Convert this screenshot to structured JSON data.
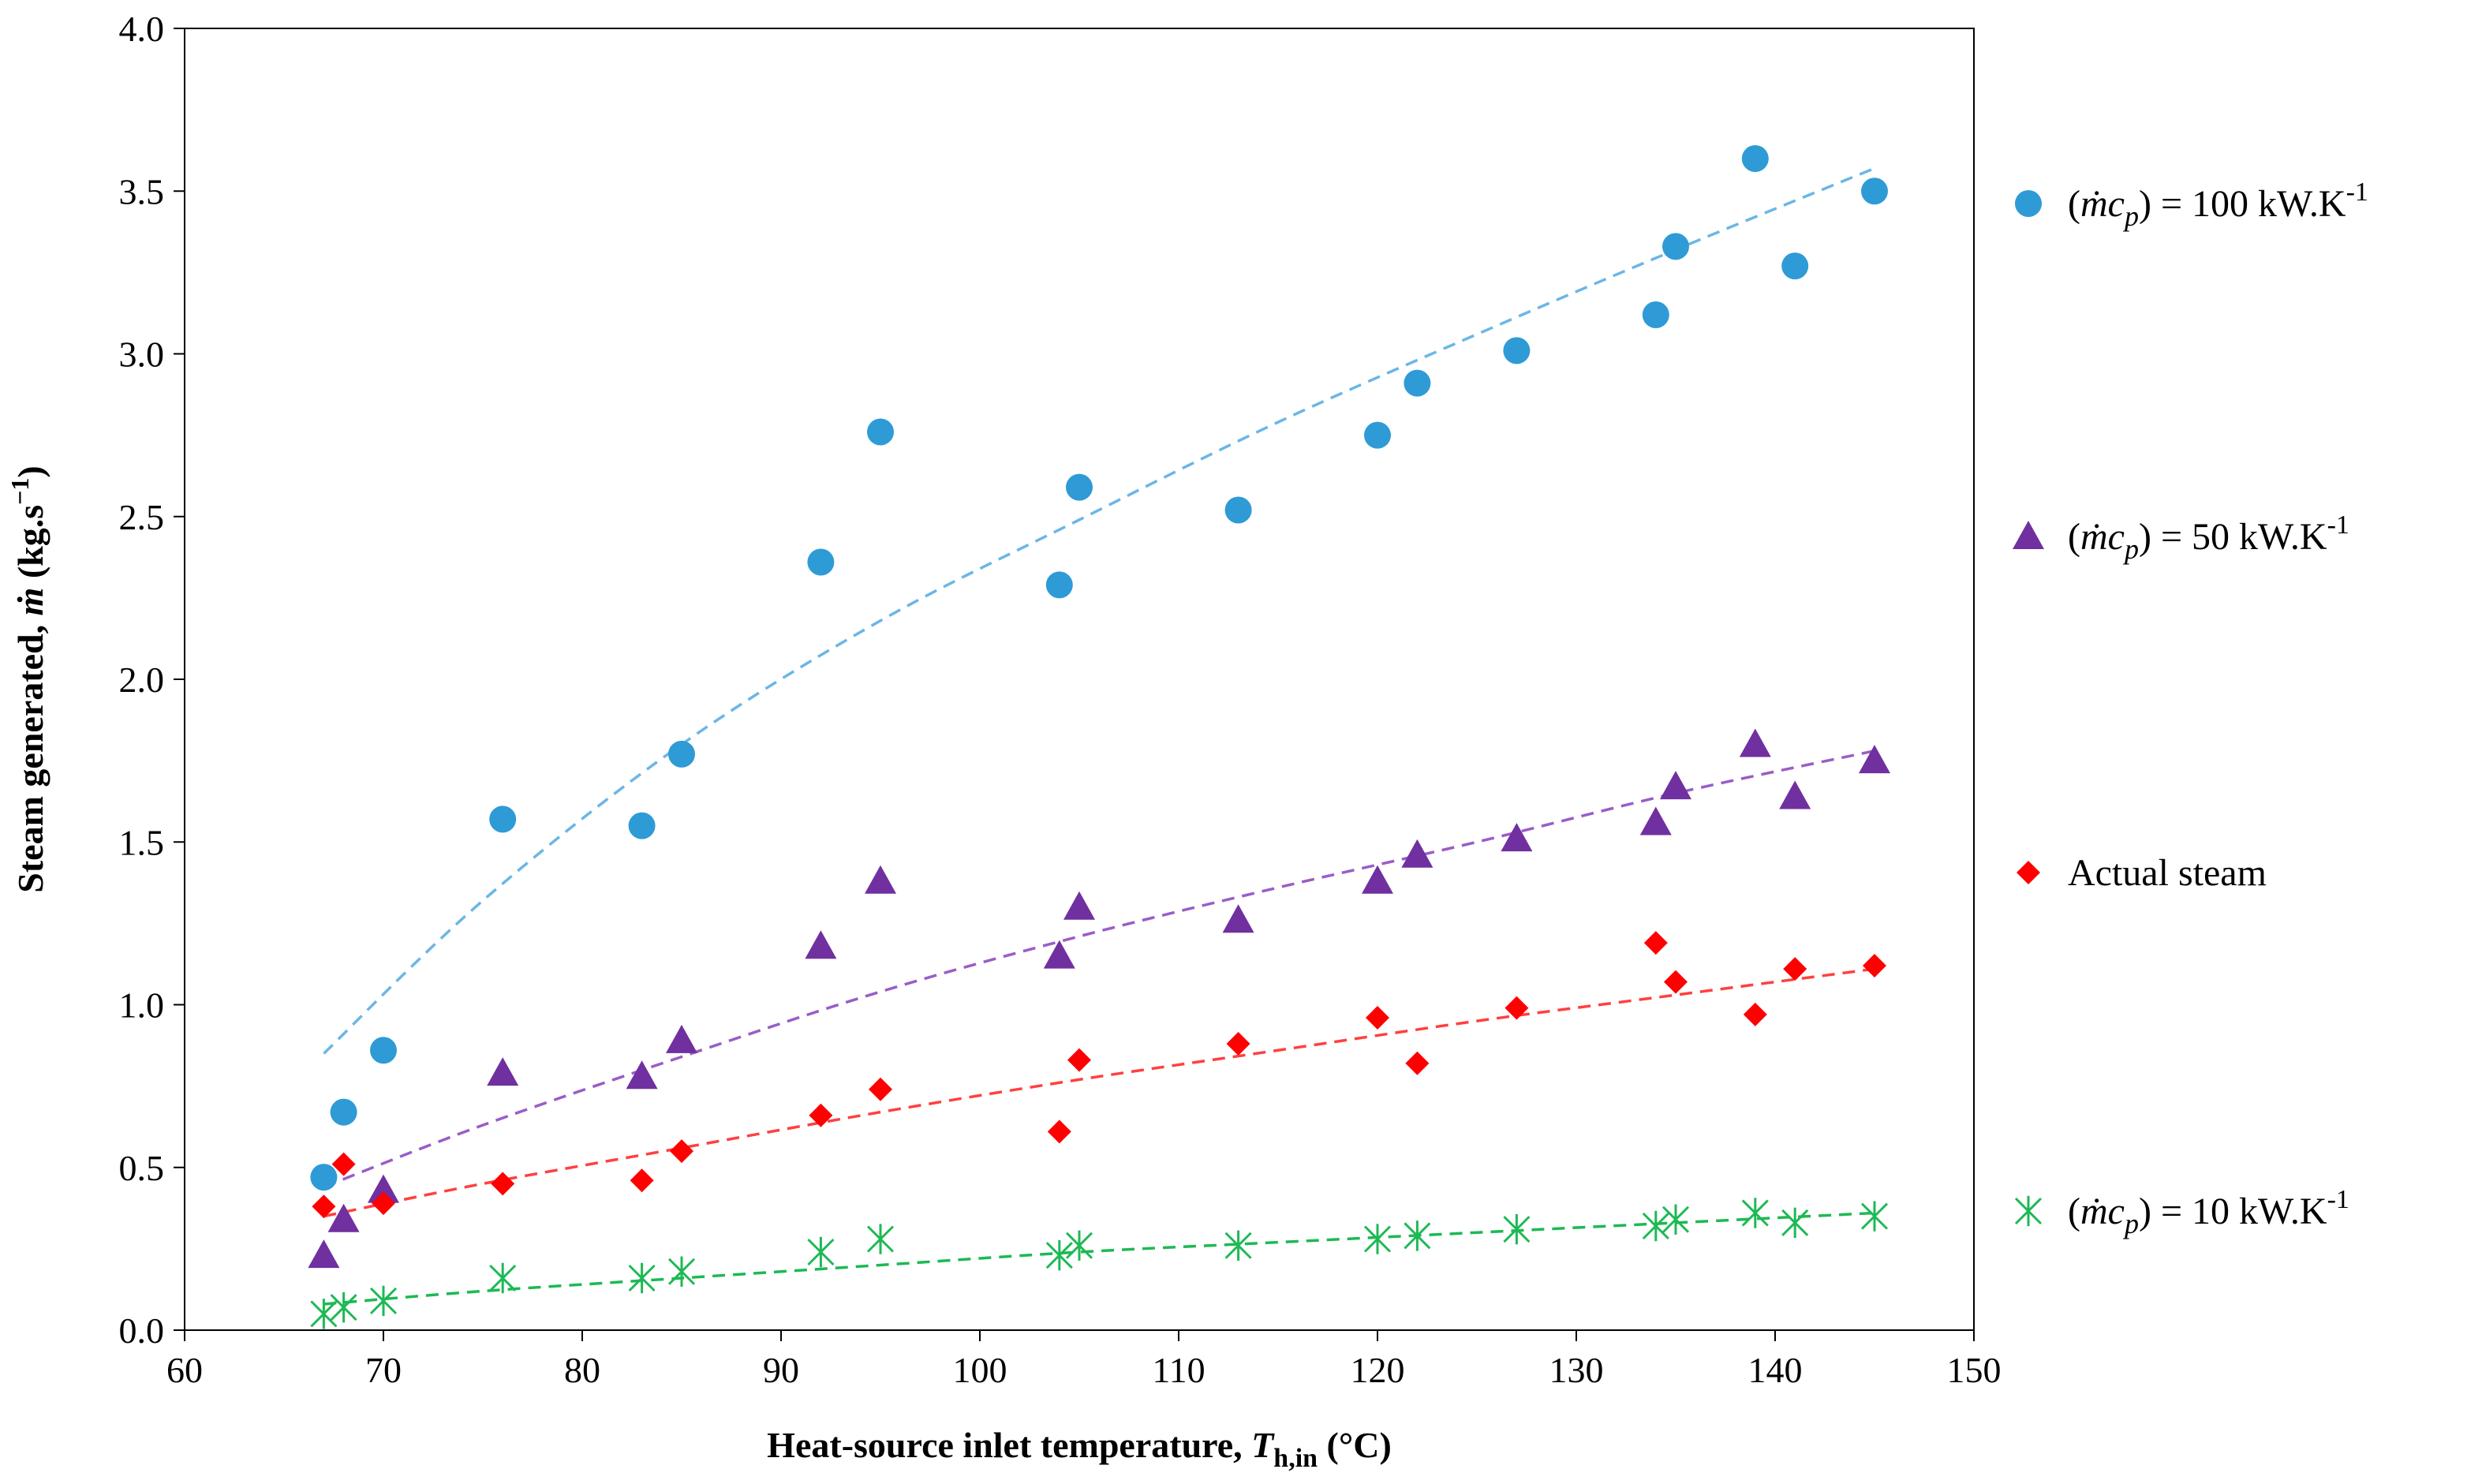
{
  "chart_data": {
    "type": "scatter",
    "title": "",
    "xlabel": {
      "prefix": "Heat-source inlet temperature, ",
      "symbol": "T",
      "sub": "h,in",
      "unit": " (°C)"
    },
    "ylabel": {
      "prefix": "Steam generated, ",
      "symbol": "ṁ",
      "unit_open": " (kg.s",
      "unit_sup": "−1",
      "unit_close": ")"
    },
    "xlim": [
      60,
      150
    ],
    "ylim": [
      0,
      4.0
    ],
    "xticks": [
      "60",
      "70",
      "80",
      "90",
      "100",
      "110",
      "120",
      "130",
      "140",
      "150"
    ],
    "yticks": [
      "0.0",
      "0.5",
      "1.0",
      "1.5",
      "2.0",
      "2.5",
      "3.0",
      "3.5",
      "4.0"
    ],
    "grid": false,
    "legend_position": "right",
    "series": [
      {
        "id": "s100",
        "name": "(ṁcp) = 100 kW.K-1",
        "legend": {
          "open": "(",
          "m": "ṁ",
          "c": "c",
          "p": "p",
          "close": ") = 100 kW.K",
          "sup": "-1"
        },
        "marker": "circle",
        "color": "#2E9BD6",
        "trend_color": "#6BB6E6",
        "x": [
          67,
          68,
          70,
          76,
          83,
          85,
          92,
          95,
          104,
          105,
          113,
          120,
          122,
          127,
          134,
          135,
          139,
          141,
          145
        ],
        "y": [
          0.47,
          0.67,
          0.86,
          1.57,
          1.55,
          1.77,
          2.36,
          2.76,
          2.29,
          2.59,
          2.52,
          2.75,
          2.91,
          3.01,
          3.12,
          3.33,
          3.6,
          3.27,
          3.5
        ],
        "trend": {
          "x": [
            67,
            75,
            85,
            95,
            105,
            115,
            125,
            135,
            145
          ],
          "y": [
            0.85,
            1.32,
            1.8,
            2.18,
            2.49,
            2.79,
            3.06,
            3.32,
            3.57
          ]
        }
      },
      {
        "id": "s50",
        "name": "(ṁcp) = 50 kW.K-1",
        "legend": {
          "open": "(",
          "m": "ṁ",
          "c": "c",
          "p": "p",
          "close": ") = 50 kW.K",
          "sup": "-1"
        },
        "marker": "triangle",
        "color": "#7030A0",
        "trend_color": "#9A5DC7",
        "x": [
          67,
          68,
          70,
          76,
          83,
          85,
          92,
          95,
          104,
          105,
          113,
          120,
          122,
          127,
          134,
          135,
          139,
          141,
          145
        ],
        "y": [
          0.23,
          0.34,
          0.43,
          0.79,
          0.78,
          0.89,
          1.18,
          1.38,
          1.15,
          1.3,
          1.26,
          1.38,
          1.46,
          1.51,
          1.56,
          1.67,
          1.8,
          1.64,
          1.75
        ],
        "trend": {
          "x": [
            67,
            75,
            85,
            95,
            105,
            115,
            125,
            135,
            145
          ],
          "y": [
            0.44,
            0.63,
            0.84,
            1.04,
            1.21,
            1.36,
            1.5,
            1.65,
            1.78
          ]
        }
      },
      {
        "id": "actual",
        "name": "Actual steam",
        "legend": {
          "text": "Actual steam"
        },
        "marker": "diamond",
        "color": "#FF0000",
        "trend_color": "#FF4040",
        "x": [
          67,
          68,
          70,
          76,
          83,
          85,
          92,
          95,
          104,
          105,
          113,
          120,
          122,
          127,
          134,
          135,
          139,
          141,
          145
        ],
        "y": [
          0.38,
          0.51,
          0.39,
          0.45,
          0.46,
          0.55,
          0.66,
          0.74,
          0.61,
          0.83,
          0.88,
          0.96,
          0.82,
          0.99,
          1.19,
          1.07,
          0.97,
          1.11,
          1.12
        ],
        "trend": {
          "x": [
            67,
            75,
            85,
            95,
            105,
            115,
            125,
            135,
            145
          ],
          "y": [
            0.35,
            0.45,
            0.56,
            0.67,
            0.77,
            0.86,
            0.95,
            1.03,
            1.11
          ]
        }
      },
      {
        "id": "s10",
        "name": "(ṁcp) = 10 kW.K-1",
        "legend": {
          "open": "(",
          "m": "ṁ",
          "c": "c",
          "p": "p",
          "close": ") = 10 kW.K",
          "sup": "-1"
        },
        "marker": "asterisk",
        "color": "#1DB954",
        "trend_color": "#1DB954",
        "x": [
          67,
          68,
          70,
          76,
          83,
          85,
          92,
          95,
          104,
          105,
          113,
          120,
          122,
          127,
          134,
          135,
          139,
          141,
          145
        ],
        "y": [
          0.05,
          0.07,
          0.09,
          0.16,
          0.16,
          0.18,
          0.24,
          0.28,
          0.23,
          0.26,
          0.26,
          0.28,
          0.29,
          0.31,
          0.32,
          0.34,
          0.36,
          0.33,
          0.35
        ],
        "trend": {
          "x": [
            67,
            75,
            85,
            95,
            105,
            115,
            125,
            135,
            145
          ],
          "y": [
            0.08,
            0.12,
            0.16,
            0.2,
            0.24,
            0.27,
            0.3,
            0.33,
            0.36
          ]
        }
      }
    ]
  }
}
